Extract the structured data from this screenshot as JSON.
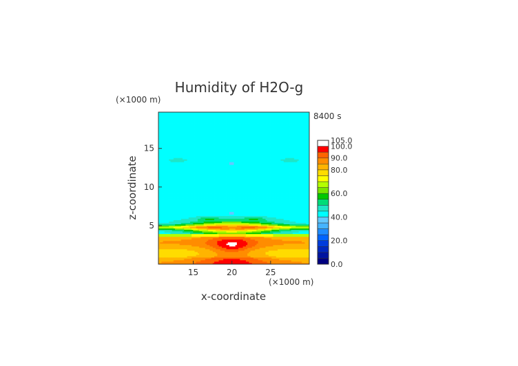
{
  "chart_data": {
    "type": "heatmap",
    "title": "Humidity of H2O-g",
    "time_label": "8400 s",
    "xlabel": "x-coordinate",
    "ylabel": "z-coordinate",
    "x_unit": "(×1000 m)",
    "y_unit": "(×1000 m)",
    "xlim": [
      10.5,
      30
    ],
    "ylim": [
      0,
      19.7
    ],
    "x_ticks": [
      15,
      20,
      25
    ],
    "y_ticks": [
      5,
      10,
      15
    ],
    "colorbar": {
      "levels": [
        0,
        5,
        10,
        15,
        20,
        25,
        30,
        35,
        40,
        45,
        50,
        55,
        60,
        65,
        70,
        75,
        80,
        85,
        90,
        95,
        100,
        105
      ],
      "colors": [
        "#000080",
        "#0014a0",
        "#0028c0",
        "#003cdc",
        "#0064ff",
        "#1e8cff",
        "#46b4ff",
        "#64c8ff",
        "#00ffff",
        "#1ee6c8",
        "#00dc78",
        "#00c800",
        "#78e600",
        "#b4ff00",
        "#ffff00",
        "#ffdc00",
        "#ffb400",
        "#ff8c00",
        "#ff6400",
        "#ff0000",
        "#ffffff"
      ],
      "tick_values": [
        0.0,
        20.0,
        40.0,
        60.0,
        80.0,
        90.0,
        100.0,
        105.0
      ],
      "tick_labels": [
        "0.0",
        "20.0",
        "40.0",
        "60.0",
        "80.0",
        "90.0",
        "100.0",
        "105.0"
      ]
    },
    "features": [
      {
        "region": "background",
        "value": 42
      },
      {
        "region": "lower layer z 0-3.6",
        "value": 83
      },
      {
        "region": "core x≈20 z≈2.5",
        "value": 98
      },
      {
        "region": "band z≈4.8",
        "value": 77
      }
    ]
  }
}
